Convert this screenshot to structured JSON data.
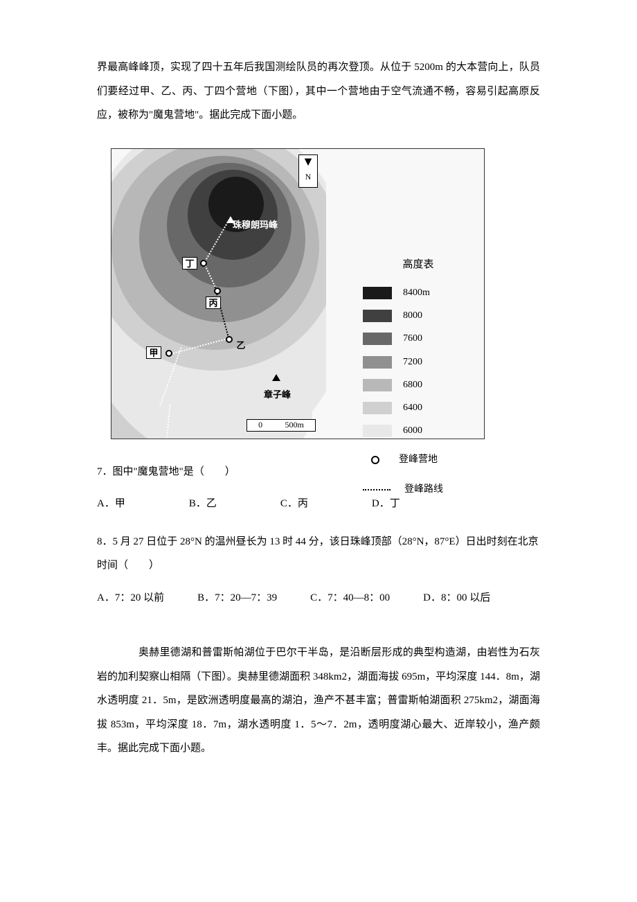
{
  "intro_paragraph": "界最高峰峰顶，实现了四十五年后我国测绘队员的再次登顶。从位于 5200m 的大本营向上，队员们要经过甲、乙、丙、丁四个营地（下图），其中一个营地由于空气流通不畅，容易引起高原反应，被称为\"魔鬼营地\"。据此完成下面小题。",
  "figure": {
    "compass_label": "N",
    "peak_zhumulangma": "珠穆朗玛峰",
    "peak_zhangzifeng": "章子峰",
    "camps": {
      "jia": "甲",
      "yi": "乙",
      "bing": "丙",
      "ding": "丁"
    },
    "scale_bar": {
      "zero": "0",
      "value": "500m"
    },
    "legend_title": "高度表",
    "elevation_levels": [
      {
        "value": "8400m",
        "color": "#1a1a1a"
      },
      {
        "value": "8000",
        "color": "#404040"
      },
      {
        "value": "7600",
        "color": "#686868"
      },
      {
        "value": "7200",
        "color": "#909090"
      },
      {
        "value": "6800",
        "color": "#b8b8b8"
      },
      {
        "value": "6400",
        "color": "#d0d0d0"
      },
      {
        "value": "6000",
        "color": "#e8e8e8"
      }
    ],
    "legend_camp": "登峰营地",
    "legend_route": "登峰路线"
  },
  "question7": {
    "stem": "7．图中\"魔鬼营地\"是（　　）",
    "options": {
      "a": "A．甲",
      "b": "B．乙",
      "c": "C．丙",
      "d": "D．丁"
    }
  },
  "question8": {
    "stem": "8．5 月 27 日位于 28°N 的温州昼长为 13 时 44 分，该日珠峰顶部（28°N，87°E）日出时刻在北京时间（　　）",
    "options": {
      "a": "A．7：20 以前",
      "b": "B．7：20—7：39",
      "c": "C．7：40—8：00",
      "d": "D．8：00 以后"
    }
  },
  "passage2": "奥赫里德湖和普雷斯帕湖位于巴尔干半岛，是沿断层形成的典型构造湖，由岩性为石灰岩的加利契察山相隔（下图）。奥赫里德湖面积 348km2，湖面海拔 695m，平均深度 144．8m，湖水透明度 21．5m，是欧洲透明度最高的湖泊，渔产不甚丰富；普雷斯帕湖面积 275km2，湖面海拔 853m，平均深度 18．7m，湖水透明度 1．5～7．2m，透明度湖心最大、近岸较小，渔产颇丰。据此完成下面小题。"
}
